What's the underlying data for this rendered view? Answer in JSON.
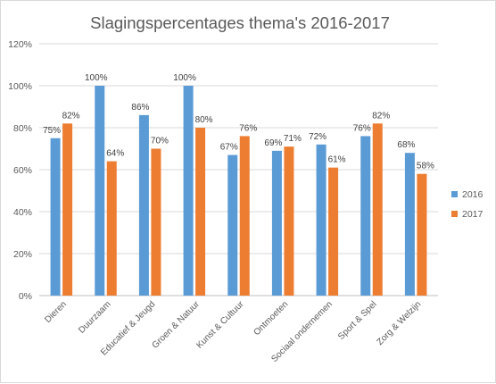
{
  "chart_data": {
    "type": "bar",
    "title": "Slagingspercentages thema's 2016-2017",
    "categories": [
      "Dieren",
      "Duurzaam",
      "Educatief & Jeugd",
      "Groen & Natuur",
      "Kunst & Cultuur",
      "Ontmoeten",
      "Sociaal ondernemen",
      "Sport & Spel",
      "Zorg & Welzijn"
    ],
    "series": [
      {
        "name": "2016",
        "color": "#5b9bd5",
        "values": [
          75,
          100,
          86,
          100,
          67,
          69,
          72,
          76,
          68
        ]
      },
      {
        "name": "2017",
        "color": "#ed7d31",
        "values": [
          82,
          64,
          70,
          80,
          76,
          71,
          61,
          82,
          58
        ]
      }
    ],
    "ylim": [
      0,
      120
    ],
    "y_ticks": [
      "0%",
      "20%",
      "40%",
      "60%",
      "80%",
      "100%",
      "120%"
    ],
    "y_tick_values": [
      0,
      20,
      40,
      60,
      80,
      100,
      120
    ],
    "value_suffix": "%",
    "grid": true,
    "legend_position": "right"
  }
}
